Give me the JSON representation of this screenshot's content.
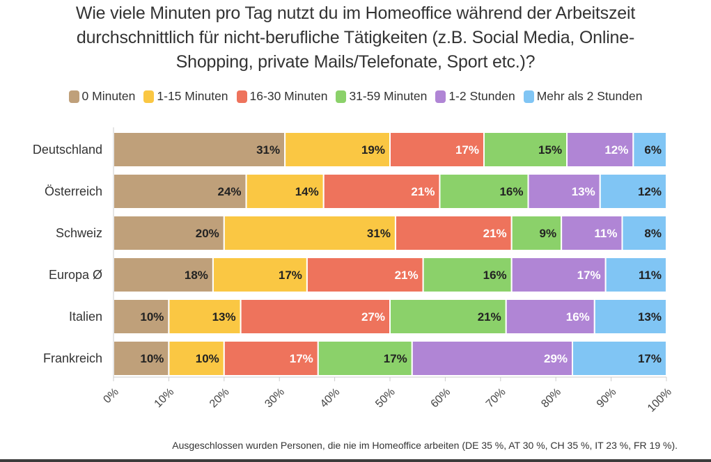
{
  "title_lines": [
    "Wie viele Minuten pro Tag nutzt du im Homeoffice während der Arbeitszeit",
    "durchschnittlich für nicht-berufliche Tätigkeiten (z.B. Social Media, Online-",
    "Shopping, private Mails/Telefonate, Sport etc.)?"
  ],
  "footnote": "Ausgeschlossen wurden Personen, die nie im Homeoffice arbeiten (DE 35 %, AT 30 %, CH 35 %, IT 23 %, FR 19 %).",
  "chart_data": {
    "type": "bar",
    "orientation": "horizontal",
    "stacked": true,
    "title": "Wie viele Minuten pro Tag nutzt du im Homeoffice während der Arbeitszeit durchschnittlich für nicht-berufliche Tätigkeiten (z.B. Social Media, Online-Shopping, private Mails/Telefonate, Sport etc.)?",
    "categories": [
      "Deutschland",
      "Österreich",
      "Schweiz",
      "Europa Ø",
      "Italien",
      "Frankreich"
    ],
    "series": [
      {
        "name": "0 Minuten",
        "color": "#bfa07a",
        "values": [
          31,
          24,
          20,
          18,
          10,
          10
        ]
      },
      {
        "name": "1-15 Minuten",
        "color": "#fac743",
        "values": [
          19,
          14,
          31,
          17,
          13,
          10
        ]
      },
      {
        "name": "16-30 Minuten",
        "color": "#ee735c",
        "values": [
          17,
          21,
          21,
          21,
          27,
          17
        ]
      },
      {
        "name": "31-59 Minuten",
        "color": "#8bd16a",
        "values": [
          15,
          16,
          9,
          16,
          21,
          17
        ]
      },
      {
        "name": "1-2 Stunden",
        "color": "#b085d5",
        "values": [
          12,
          13,
          11,
          17,
          16,
          29
        ]
      },
      {
        "name": "Mehr als 2 Stunden",
        "color": "#80c5f4",
        "values": [
          6,
          12,
          8,
          11,
          13,
          17
        ]
      }
    ],
    "label_colors": [
      "#222222",
      "#222222",
      "#ffffff",
      "#222222",
      "#ffffff",
      "#222222"
    ],
    "xlim": [
      0,
      100
    ],
    "x_ticks": [
      "0%",
      "10%",
      "20%",
      "30%",
      "40%",
      "50%",
      "60%",
      "70%",
      "80%",
      "90%",
      "100%"
    ],
    "legend_position": "top",
    "grid": false
  }
}
